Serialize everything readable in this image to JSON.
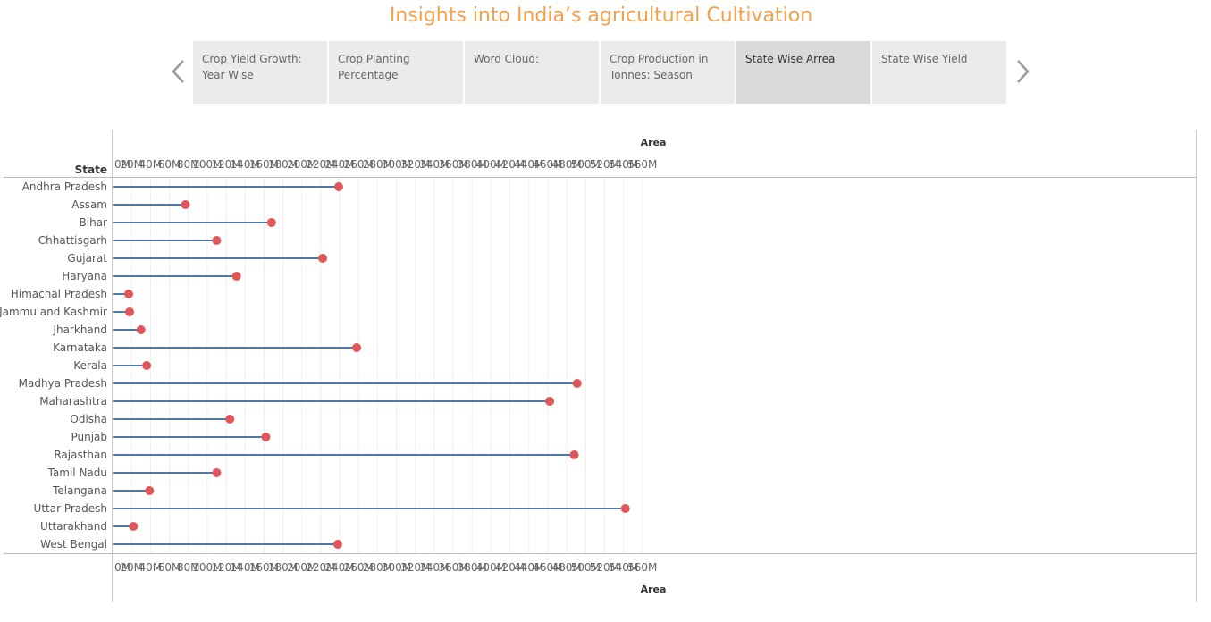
{
  "header": {
    "title": "Insights into India’s  agricultural Cultivation"
  },
  "icons": {
    "prev": "chevron-left-icon",
    "next": "chevron-right-icon"
  },
  "tabs": [
    {
      "label": "Crop Yield Growth: Year Wise",
      "active": false
    },
    {
      "label": "Crop Planting Percentage",
      "active": false
    },
    {
      "label": "Word Cloud:",
      "active": false
    },
    {
      "label": "Crop Production in Tonnes: Season",
      "active": false
    },
    {
      "label": "State Wise Arrea",
      "active": true
    },
    {
      "label": "State Wise Yield",
      "active": false
    }
  ],
  "colors": {
    "line": "#4e79a7",
    "dot": "#e15759",
    "title": "#f5a04b"
  },
  "chart_data": {
    "type": "lollipop",
    "row_header": "State",
    "xlabel": "Area",
    "xlim": [
      0,
      560000000
    ],
    "x_ticks": [
      "0M",
      "20M",
      "40M",
      "60M",
      "80M",
      "100M",
      "120M",
      "140M",
      "160M",
      "180M",
      "200M",
      "220M",
      "240M",
      "260M",
      "280M",
      "300M",
      "320M",
      "340M",
      "360M",
      "380M",
      "400M",
      "420M",
      "440M",
      "460M",
      "480M",
      "500M",
      "520M",
      "540M",
      "560M"
    ],
    "grid": "vertical",
    "categories": [
      "Andhra Pradesh",
      "Assam",
      "Bihar",
      "Chhattisgarh",
      "Gujarat",
      "Haryana",
      "Himachal Pradesh",
      "Jammu and Kashmir",
      "Jharkhand",
      "Karnataka",
      "Kerala",
      "Madhya Pradesh",
      "Maharashtra",
      "Odisha",
      "Punjab",
      "Rajasthan",
      "Tamil Nadu",
      "Telangana",
      "Uttar Pradesh",
      "Uttarakhand",
      "West Bengal"
    ],
    "values": [
      239000000,
      77000000,
      168000000,
      110000000,
      222000000,
      131000000,
      17000000,
      18000000,
      30000000,
      258000000,
      36000000,
      491000000,
      462000000,
      124000000,
      162000000,
      488000000,
      110000000,
      39000000,
      542000000,
      22000000,
      238000000
    ]
  }
}
